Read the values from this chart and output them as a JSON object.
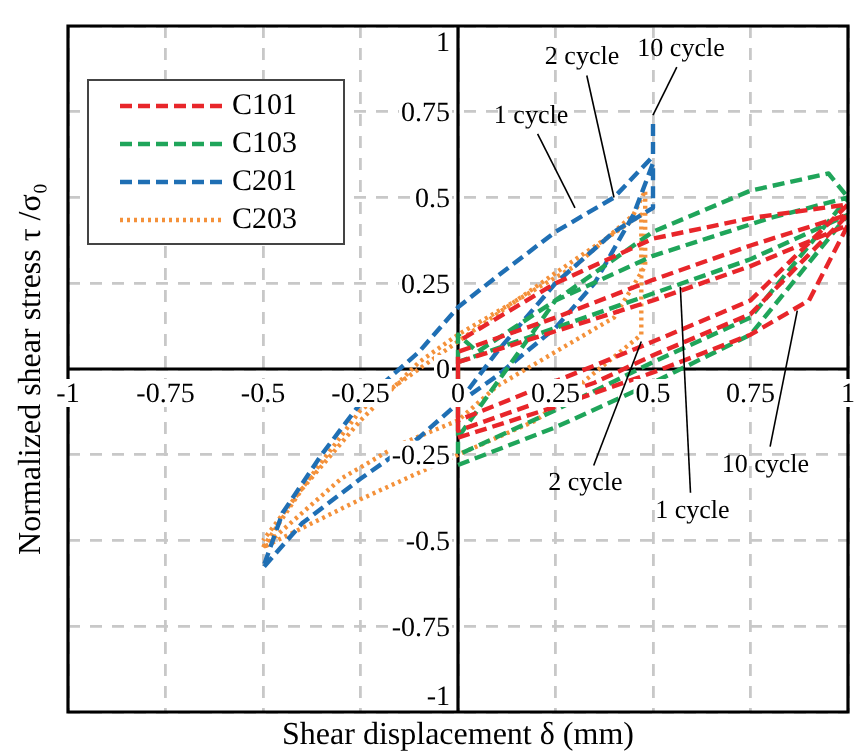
{
  "chart_data": {
    "type": "line",
    "xlabel": "Shear displacement δ (mm)",
    "ylabel": "Normalized shear stress τ /σ₀",
    "xlim": [
      -1,
      1
    ],
    "ylim": [
      -1,
      1
    ],
    "xticks": [
      -1,
      -0.75,
      -0.5,
      -0.25,
      0,
      0.25,
      0.5,
      0.75,
      1
    ],
    "yticks": [
      -1,
      -0.75,
      -0.5,
      -0.25,
      0,
      0.25,
      0.5,
      0.75,
      1
    ],
    "grid": true,
    "legend": "top left",
    "marker": "none",
    "series": [
      {
        "name": "C101",
        "color": "#e8262a",
        "line_style": "dashed",
        "x": [
          0,
          0.25,
          0.5,
          0.75,
          0.9,
          1,
          0.75,
          0.5,
          0.25,
          0,
          0,
          0.35,
          0.5,
          0.75,
          1,
          0.75,
          0.5,
          0.25,
          0,
          0,
          0.35,
          0.5,
          0.75,
          1,
          0.75,
          0.5,
          0.25,
          0
        ],
        "values": [
          -0.2,
          -0.11,
          -0.01,
          0.1,
          0.2,
          0.42,
          0.3,
          0.2,
          0.11,
          0.02,
          -0.18,
          -0.04,
          0.04,
          0.16,
          0.45,
          0.36,
          0.26,
          0.15,
          0.05,
          -0.15,
          0.01,
          0.08,
          0.2,
          0.48,
          0.44,
          0.38,
          0.25,
          0.08
        ]
      },
      {
        "name": "C103",
        "color": "#1fa55a",
        "line_style": "dashed",
        "x": [
          0,
          0.25,
          0.5,
          0.75,
          1,
          0.75,
          0.5,
          0.25,
          0,
          0,
          0.25,
          0.5,
          0.75,
          1,
          0.8,
          0.5,
          0.25,
          0.05,
          0,
          0,
          0.25,
          0.5,
          0.75,
          0.95,
          1
        ],
        "values": [
          -0.28,
          -0.17,
          -0.04,
          0.1,
          0.45,
          0.32,
          0.22,
          0.12,
          0.02,
          -0.25,
          -0.12,
          0.02,
          0.15,
          0.5,
          0.44,
          0.33,
          0.2,
          0.05,
          0.1,
          -0.2,
          0.2,
          0.4,
          0.52,
          0.57,
          0.5
        ]
      },
      {
        "name": "C201",
        "color": "#1f6fb4",
        "line_style": "dashed",
        "x": [
          0,
          0.1,
          0.25,
          0.4,
          0.5,
          0.5,
          0.45,
          0.35,
          0.25,
          0.1,
          0,
          -0.1,
          -0.25,
          -0.4,
          -0.5,
          -0.45,
          -0.35,
          -0.25,
          -0.1,
          0,
          0.1,
          0.25,
          0.4,
          0.5,
          0.5
        ],
        "values": [
          -0.1,
          0.05,
          0.25,
          0.4,
          0.47,
          0.6,
          0.45,
          0.25,
          0.12,
          -0.02,
          -0.1,
          -0.2,
          -0.32,
          -0.45,
          -0.58,
          -0.42,
          -0.25,
          -0.1,
          0.05,
          0.18,
          0.27,
          0.4,
          0.5,
          0.62,
          0.72
        ]
      },
      {
        "name": "C203",
        "color": "#f4913a",
        "line_style": "dotted",
        "x": [
          -0.5,
          -0.4,
          -0.25,
          -0.1,
          0,
          0.15,
          0.3,
          0.45,
          0.48,
          0.48,
          0.4,
          0.25,
          0.1,
          0,
          -0.15,
          -0.3,
          -0.5,
          -0.25,
          0,
          0.2,
          0.47,
          0.47,
          0.25,
          0,
          -0.25,
          -0.5
        ],
        "values": [
          -0.52,
          -0.35,
          -0.15,
          0.02,
          0.1,
          0.2,
          0.3,
          0.45,
          0.52,
          0.3,
          0.15,
          0.05,
          -0.05,
          -0.15,
          -0.22,
          -0.32,
          -0.52,
          -0.38,
          -0.25,
          -0.15,
          0.1,
          0.45,
          0.28,
          0.08,
          -0.12,
          -0.5
        ]
      }
    ],
    "annotations": [
      {
        "text": "1 cycle",
        "x": 0.3,
        "y": 0.47
      },
      {
        "text": "2 cycle",
        "x": 0.4,
        "y": 0.5
      },
      {
        "text": "10 cycle",
        "x": 0.5,
        "y": 0.74
      },
      {
        "text": "2 cycle",
        "x": 0.47,
        "y": 0.08
      },
      {
        "text": "1 cycle",
        "x": 0.57,
        "y": 0.24
      },
      {
        "text": "10 cycle",
        "x": 0.87,
        "y": 0.17
      }
    ]
  }
}
